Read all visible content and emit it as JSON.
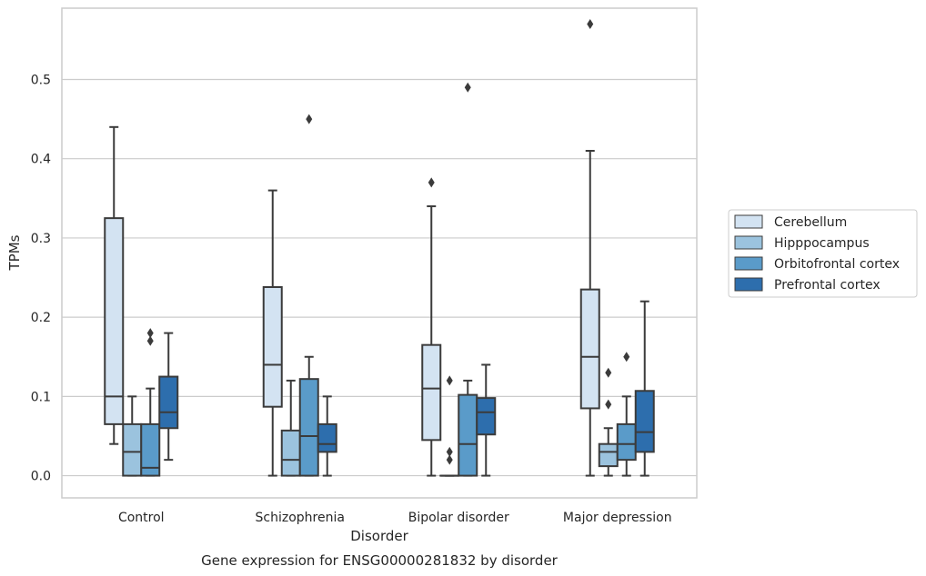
{
  "chart_data": {
    "type": "box",
    "title": "",
    "xlabel": "Disorder",
    "ylabel": "TPMs",
    "caption": "Gene expression for ENSG00000281832 by disorder",
    "categories": [
      "Control",
      "Schizophrenia",
      "Bipolar disorder",
      "Major depression"
    ],
    "ylim": [
      -0.028,
      0.59
    ],
    "yticks": [
      0.0,
      0.1,
      0.2,
      0.3,
      0.4,
      0.5
    ],
    "ytick_labels": [
      "0.0",
      "0.1",
      "0.2",
      "0.3",
      "0.4",
      "0.5"
    ],
    "grid": "horizontal",
    "legend_position": "right",
    "series": [
      {
        "name": "Cerebellum",
        "color": "#d3e3f2",
        "boxes": [
          {
            "whislo": 0.04,
            "q1": 0.065,
            "med": 0.1,
            "q3": 0.325,
            "whishi": 0.44,
            "fliers": []
          },
          {
            "whislo": 0.0,
            "q1": 0.087,
            "med": 0.14,
            "q3": 0.238,
            "whishi": 0.36,
            "fliers": []
          },
          {
            "whislo": 0.0,
            "q1": 0.045,
            "med": 0.11,
            "q3": 0.165,
            "whishi": 0.34,
            "fliers": [
              0.37
            ]
          },
          {
            "whislo": 0.0,
            "q1": 0.085,
            "med": 0.15,
            "q3": 0.235,
            "whishi": 0.41,
            "fliers": [
              0.57
            ]
          }
        ]
      },
      {
        "name": "Hipppocampus",
        "color": "#9bc3de",
        "boxes": [
          {
            "whislo": 0.0,
            "q1": 0.0,
            "med": 0.03,
            "q3": 0.065,
            "whishi": 0.1,
            "fliers": []
          },
          {
            "whislo": 0.0,
            "q1": 0.0,
            "med": 0.02,
            "q3": 0.057,
            "whishi": 0.12,
            "fliers": []
          },
          {
            "whislo": 0.0,
            "q1": 0.0,
            "med": 0.0,
            "q3": 0.0,
            "whishi": 0.0,
            "fliers": [
              0.12,
              0.03,
              0.02
            ]
          },
          {
            "whislo": 0.0,
            "q1": 0.012,
            "med": 0.03,
            "q3": 0.04,
            "whishi": 0.06,
            "fliers": [
              0.13,
              0.09
            ]
          }
        ]
      },
      {
        "name": "Orbitofrontal cortex",
        "color": "#5a9bc9",
        "boxes": [
          {
            "whislo": 0.0,
            "q1": 0.0,
            "med": 0.01,
            "q3": 0.065,
            "whishi": 0.11,
            "fliers": [
              0.18,
              0.17
            ]
          },
          {
            "whislo": 0.0,
            "q1": 0.0,
            "med": 0.05,
            "q3": 0.122,
            "whishi": 0.15,
            "fliers": [
              0.45
            ]
          },
          {
            "whislo": 0.0,
            "q1": 0.0,
            "med": 0.04,
            "q3": 0.102,
            "whishi": 0.12,
            "fliers": [
              0.49
            ]
          },
          {
            "whislo": 0.0,
            "q1": 0.02,
            "med": 0.04,
            "q3": 0.065,
            "whishi": 0.1,
            "fliers": [
              0.15
            ]
          }
        ]
      },
      {
        "name": "Prefrontal cortex",
        "color": "#2d6ead",
        "boxes": [
          {
            "whislo": 0.02,
            "q1": 0.06,
            "med": 0.08,
            "q3": 0.125,
            "whishi": 0.18,
            "fliers": []
          },
          {
            "whislo": 0.0,
            "q1": 0.03,
            "med": 0.04,
            "q3": 0.065,
            "whishi": 0.1,
            "fliers": []
          },
          {
            "whislo": 0.0,
            "q1": 0.052,
            "med": 0.08,
            "q3": 0.098,
            "whishi": 0.14,
            "fliers": []
          },
          {
            "whislo": 0.0,
            "q1": 0.03,
            "med": 0.055,
            "q3": 0.107,
            "whishi": 0.22,
            "fliers": []
          }
        ]
      }
    ]
  },
  "colors": {
    "line": "#3b3b3b",
    "grid": "#cccccc",
    "frame": "#cccccc"
  }
}
